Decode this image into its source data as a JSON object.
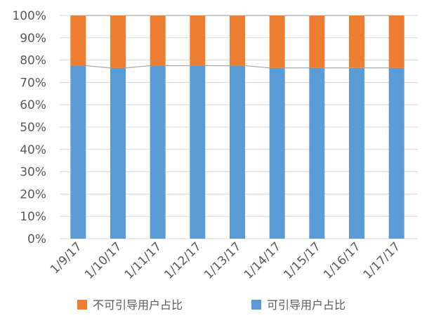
{
  "chart_data": {
    "type": "bar",
    "stacked": true,
    "percent": true,
    "categories": [
      "1/9/17",
      "1/10/17",
      "1/11/17",
      "1/12/17",
      "1/13/17",
      "1/14/17",
      "1/15/17",
      "1/16/17",
      "1/17/17"
    ],
    "series": [
      {
        "name": "可引导用户占比",
        "color": "#5B9BD5",
        "values": [
          77.5,
          76.5,
          77.5,
          77.5,
          77.5,
          76.5,
          76.5,
          76.5,
          76.5
        ]
      },
      {
        "name": "不可引导用户占比",
        "color": "#ED7D31",
        "values": [
          22.5,
          23.5,
          22.5,
          22.5,
          22.5,
          23.5,
          23.5,
          23.5,
          23.5
        ]
      }
    ],
    "ylim": [
      0,
      100
    ],
    "yticks": [
      "0%",
      "10%",
      "20%",
      "30%",
      "40%",
      "50%",
      "60%",
      "70%",
      "80%",
      "90%",
      "100%"
    ],
    "grid": true,
    "series_lines": true,
    "legend": {
      "position": "bottom",
      "order": [
        "不可引导用户占比",
        "可引导用户占比"
      ]
    }
  }
}
